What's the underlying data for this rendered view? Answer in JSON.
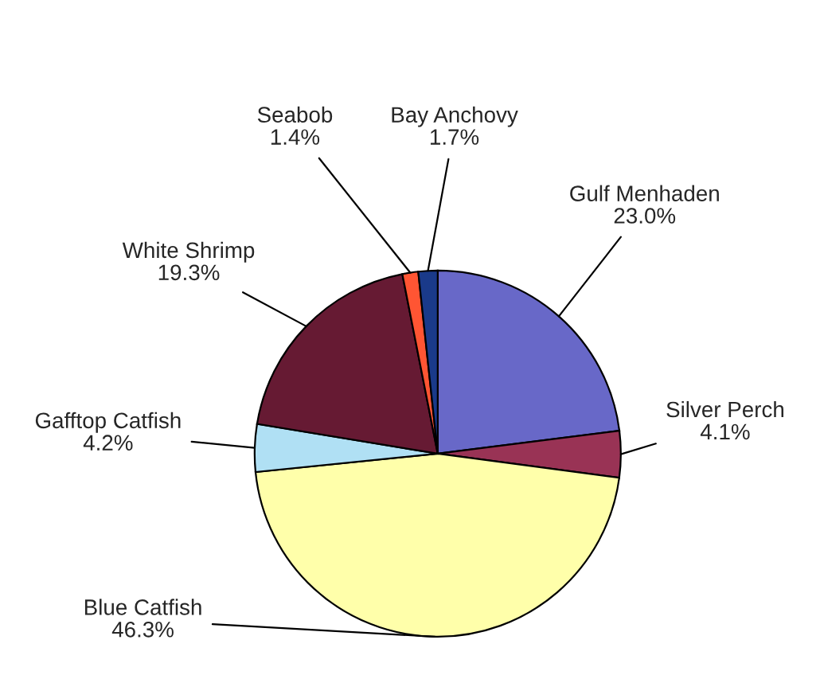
{
  "chart_data": {
    "type": "pie",
    "categories": [
      "Gulf Menhaden",
      "Silver Perch",
      "Blue Catfish",
      "Gafftop Catfish",
      "White Shrimp",
      "Seabob",
      "Bay Anchovy"
    ],
    "values": [
      23.0,
      4.1,
      46.3,
      4.2,
      19.3,
      1.4,
      1.7
    ],
    "value_labels": [
      "23.0%",
      "4.1%",
      "46.3%",
      "4.2%",
      "19.3%",
      "1.4%",
      "1.7%"
    ],
    "colors": [
      "#6868c8",
      "#993355",
      "#ffffaa",
      "#b0e0f4",
      "#661a33",
      "#ff5533",
      "#1a3a8a"
    ]
  }
}
